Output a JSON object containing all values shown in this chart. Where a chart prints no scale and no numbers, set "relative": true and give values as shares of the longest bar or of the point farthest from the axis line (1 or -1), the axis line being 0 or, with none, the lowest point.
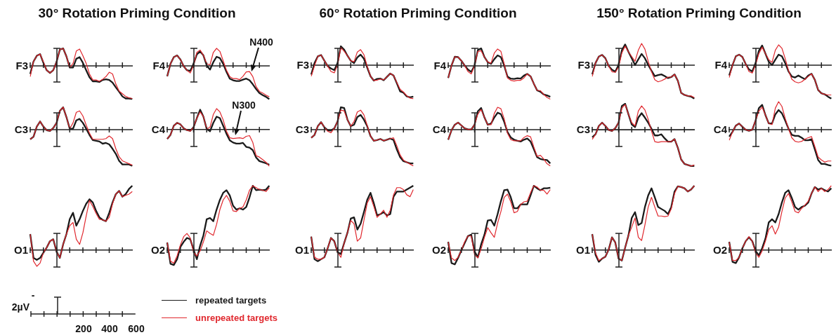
{
  "chart_data": [
    {
      "type": "other",
      "title": "30° Rotation Priming Condition"
    },
    {
      "type": "other",
      "title": "60° Rotation Priming Condition"
    },
    {
      "type": "other",
      "title": "150° Rotation Priming Condition"
    },
    {
      "type": "line",
      "relative": true,
      "ylabel": "F3",
      "legend": "bottom",
      "categories": [
        null,
        null,
        null,
        null,
        null,
        null,
        null,
        null,
        null,
        null,
        null,
        null,
        null,
        null,
        null,
        null,
        null,
        null,
        null,
        null,
        null,
        null,
        null,
        null,
        null,
        null,
        null,
        null,
        null,
        null,
        null,
        null
      ],
      "series": [
        {
          "name": "repeated targets",
          "color": "#1a1a1a",
          "values": [
            -0.25,
            0.12,
            0.29,
            0.34,
            0.08,
            -0.14,
            -0.22,
            -0.14,
            0.11,
            0.47,
            0.51,
            0.27,
            -0.06,
            -0.06,
            0.2,
            0.25,
            0.08,
            -0.14,
            -0.35,
            -0.47,
            -0.47,
            -0.49,
            -0.43,
            -0.41,
            -0.43,
            -0.51,
            -0.65,
            -0.78,
            -0.92,
            -0.98,
            -0.98,
            -1
          ]
        },
        {
          "name": "unrepeated targets",
          "color": "#e0282e",
          "values": [
            -0.33,
            0.12,
            0.29,
            0.34,
            0.11,
            -0.14,
            -0.22,
            -0.14,
            0.11,
            0.47,
            0.51,
            0.27,
            -0.06,
            0.06,
            0.43,
            0.49,
            0.29,
            0.06,
            -0.25,
            -0.43,
            -0.43,
            -0.47,
            -0.41,
            -0.33,
            -0.2,
            -0.25,
            -0.55,
            -0.76,
            -0.84,
            -0.92,
            -0.96,
            -0.98
          ]
        }
      ]
    },
    {
      "type": "line",
      "relative": true,
      "ylabel": "F4",
      "annotations": [
        "N400"
      ],
      "categories": [
        null,
        null,
        null,
        null,
        null,
        null,
        null,
        null,
        null,
        null,
        null,
        null,
        null,
        null,
        null,
        null,
        null,
        null,
        null,
        null,
        null,
        null,
        null,
        null,
        null,
        null,
        null,
        null,
        null,
        null,
        null,
        null
      ],
      "series": [
        {
          "color": "#1a1a1a",
          "values": [
            -0.32,
            0.05,
            0.25,
            0.3,
            0.18,
            -0.02,
            -0.14,
            -0.16,
            0.05,
            0.33,
            0.42,
            0.3,
            0,
            -0.12,
            0.1,
            0.26,
            0.22,
            0.05,
            -0.19,
            -0.39,
            -0.44,
            -0.46,
            -0.46,
            -0.42,
            -0.39,
            -0.44,
            -0.56,
            -0.7,
            -0.82,
            -0.88,
            -0.93,
            -1
          ]
        },
        {
          "color": "#e0282e",
          "values": [
            -0.32,
            0.05,
            0.25,
            0.3,
            0.18,
            -0.02,
            -0.14,
            -0.22,
            0,
            0.39,
            0.46,
            0.3,
            0.05,
            0.02,
            0.39,
            0.51,
            0.42,
            0.14,
            -0.14,
            -0.33,
            -0.39,
            -0.39,
            -0.42,
            -0.32,
            -0.19,
            -0.18,
            -0.33,
            -0.63,
            -0.77,
            -0.82,
            -0.88,
            -0.93
          ]
        }
      ]
    },
    {
      "type": "line",
      "relative": true,
      "ylabel": "F3",
      "categories": [
        null,
        null,
        null,
        null,
        null,
        null,
        null,
        null,
        null,
        null,
        null,
        null,
        null,
        null,
        null,
        null,
        null,
        null,
        null,
        null,
        null,
        null,
        null,
        null,
        null,
        null,
        null,
        null,
        null,
        null,
        null,
        null
      ],
      "series": [
        {
          "color": "#1a1a1a",
          "values": [
            -0.28,
            0.06,
            0.26,
            0.3,
            0.13,
            -0.03,
            -0.1,
            -0.15,
            0.06,
            0.56,
            0.46,
            0.28,
            0.13,
            0.06,
            0.23,
            0.31,
            0.19,
            -0.07,
            -0.33,
            -0.46,
            -0.41,
            -0.4,
            -0.45,
            -0.35,
            -0.25,
            -0.31,
            -0.54,
            -0.78,
            -0.82,
            -0.93,
            -0.96,
            -0.94
          ]
        },
        {
          "color": "#e0282e",
          "values": [
            -0.33,
            -0.02,
            0.26,
            0.3,
            0.13,
            -0.03,
            -0.19,
            -0.23,
            0,
            0.52,
            0.41,
            0.28,
            0.13,
            0.1,
            0.39,
            0.46,
            0.31,
            -0.03,
            -0.33,
            -0.46,
            -0.45,
            -0.41,
            -0.44,
            -0.35,
            -0.25,
            -0.31,
            -0.52,
            -0.72,
            -0.8,
            -0.91,
            -0.98,
            -1
          ]
        }
      ]
    },
    {
      "type": "line",
      "relative": true,
      "ylabel": "F4",
      "categories": [
        null,
        null,
        null,
        null,
        null,
        null,
        null,
        null,
        null,
        null,
        null,
        null,
        null,
        null,
        null,
        null,
        null,
        null,
        null,
        null,
        null,
        null,
        null,
        null,
        null,
        null,
        null,
        null,
        null,
        null,
        null,
        null
      ],
      "series": [
        {
          "color": "#1a1a1a",
          "values": [
            -0.37,
            0,
            0.26,
            0.25,
            0.14,
            0,
            -0.12,
            -0.19,
            0,
            0.46,
            0.51,
            0.25,
            0.1,
            0.05,
            0.19,
            0.3,
            0.25,
            0,
            -0.33,
            -0.39,
            -0.4,
            -0.38,
            -0.39,
            -0.3,
            -0.25,
            -0.32,
            -0.54,
            -0.74,
            -0.78,
            -0.86,
            -0.89,
            -0.93
          ]
        },
        {
          "color": "#e0282e",
          "values": [
            -0.37,
            0,
            0.26,
            0.25,
            0.14,
            0,
            -0.18,
            -0.25,
            0,
            0.42,
            0.44,
            0.25,
            0.1,
            0.07,
            0.37,
            0.49,
            0.42,
            0.05,
            -0.37,
            -0.44,
            -0.46,
            -0.44,
            -0.44,
            -0.37,
            -0.25,
            -0.32,
            -0.54,
            -0.74,
            -0.75,
            -0.86,
            -0.95,
            -1
          ]
        }
      ]
    },
    {
      "type": "line",
      "relative": true,
      "ylabel": "F3",
      "categories": [
        null,
        null,
        null,
        null,
        null,
        null,
        null,
        null,
        null,
        null,
        null,
        null,
        null,
        null,
        null,
        null,
        null,
        null,
        null,
        null,
        null,
        null,
        null,
        null,
        null,
        null,
        null,
        null,
        null,
        null,
        null,
        null
      ],
      "series": [
        {
          "color": "#1a1a1a",
          "values": [
            -0.28,
            0.06,
            0.25,
            0.3,
            0.2,
            -0.03,
            -0.14,
            -0.2,
            0,
            0.44,
            0.61,
            0.39,
            0.2,
            0,
            0.17,
            0.33,
            0.2,
            0,
            -0.17,
            -0.33,
            -0.3,
            -0.28,
            -0.33,
            -0.39,
            -0.36,
            -0.28,
            -0.47,
            -0.83,
            -0.89,
            -0.92,
            -0.94,
            -1
          ]
        },
        {
          "color": "#e0282e",
          "values": [
            -0.34,
            0.06,
            0.25,
            0.3,
            0.2,
            -0.03,
            -0.2,
            -0.22,
            -0.06,
            0.36,
            0.56,
            0.39,
            0.25,
            0.11,
            0.44,
            0.64,
            0.47,
            0.11,
            -0.2,
            -0.44,
            -0.5,
            -0.47,
            -0.42,
            -0.36,
            -0.36,
            -0.28,
            -0.47,
            -0.83,
            -0.89,
            -0.92,
            -0.92,
            -0.97
          ]
        }
      ]
    },
    {
      "type": "line",
      "relative": true,
      "ylabel": "F4",
      "categories": [
        null,
        null,
        null,
        null,
        null,
        null,
        null,
        null,
        null,
        null,
        null,
        null,
        null,
        null,
        null,
        null,
        null,
        null,
        null,
        null,
        null,
        null,
        null,
        null,
        null,
        null,
        null,
        null,
        null,
        null,
        null,
        null
      ],
      "series": [
        {
          "color": "#1a1a1a",
          "values": [
            -0.31,
            0,
            0.26,
            0.31,
            0.24,
            0.03,
            -0.13,
            -0.19,
            0.06,
            0.42,
            0.58,
            0.34,
            0.1,
            0,
            0.16,
            0.31,
            0.26,
            0.06,
            -0.19,
            -0.34,
            -0.37,
            -0.31,
            -0.37,
            -0.42,
            -0.31,
            -0.26,
            -0.44,
            -0.74,
            -0.84,
            -0.87,
            -0.94,
            -1
          ]
        },
        {
          "color": "#e0282e",
          "values": [
            -0.37,
            0,
            0.26,
            0.31,
            0.24,
            0.03,
            -0.19,
            -0.24,
            0,
            0.34,
            0.53,
            0.34,
            0.16,
            0.08,
            0.44,
            0.6,
            0.5,
            0.19,
            -0.16,
            -0.42,
            -0.5,
            -0.53,
            -0.5,
            -0.42,
            -0.34,
            -0.26,
            -0.44,
            -0.74,
            -0.84,
            -0.87,
            -0.89,
            -0.89
          ]
        }
      ]
    },
    {
      "type": "line",
      "relative": true,
      "ylabel": "C3",
      "categories": [
        null,
        null,
        null,
        null,
        null,
        null,
        null,
        null,
        null,
        null,
        null,
        null,
        null,
        null,
        null,
        null,
        null,
        null,
        null,
        null,
        null,
        null,
        null,
        null,
        null,
        null,
        null,
        null,
        null,
        null,
        null,
        null
      ],
      "series": [
        {
          "color": "#1a1a1a",
          "values": [
            -0.27,
            -0.2,
            0.08,
            0.22,
            0.08,
            -0.02,
            -0.04,
            0.04,
            0.18,
            0.51,
            0.61,
            0.34,
            0.02,
            0.02,
            0.25,
            0.29,
            0.18,
            0.02,
            -0.15,
            -0.29,
            -0.31,
            -0.33,
            -0.39,
            -0.37,
            -0.41,
            -0.53,
            -0.67,
            -0.86,
            -0.96,
            -0.96,
            -0.96,
            -1
          ]
        },
        {
          "color": "#e0282e",
          "values": [
            -0.27,
            -0.2,
            0.08,
            0.22,
            0.08,
            -0.02,
            -0.04,
            0.04,
            0.18,
            0.51,
            0.61,
            0.34,
            0.02,
            0.18,
            0.47,
            0.51,
            0.37,
            0.12,
            -0.1,
            -0.27,
            -0.27,
            -0.27,
            -0.27,
            -0.25,
            -0.18,
            -0.25,
            -0.53,
            -0.75,
            -0.86,
            -0.9,
            -0.94,
            -0.98
          ]
        }
      ]
    },
    {
      "type": "line",
      "relative": true,
      "ylabel": "C4",
      "annotations": [
        "N300"
      ],
      "categories": [
        null,
        null,
        null,
        null,
        null,
        null,
        null,
        null,
        null,
        null,
        null,
        null,
        null,
        null,
        null,
        null,
        null,
        null,
        null,
        null,
        null,
        null,
        null,
        null,
        null,
        null,
        null,
        null,
        null,
        null,
        null,
        null
      ],
      "series": [
        {
          "color": "#1a1a1a",
          "values": [
            -0.25,
            -0.14,
            0.11,
            0.19,
            0.15,
            0.04,
            -0.01,
            -0.03,
            0.07,
            0.32,
            0.55,
            0.36,
            0.02,
            -0.04,
            0.19,
            0.36,
            0.32,
            0.11,
            -0.11,
            -0.29,
            -0.35,
            -0.38,
            -0.38,
            -0.36,
            -0.47,
            -0.49,
            -0.56,
            -0.76,
            -0.86,
            -0.89,
            -0.92,
            -0.96
          ]
        },
        {
          "color": "#e0282e",
          "values": [
            -0.25,
            -0.14,
            0.11,
            0.19,
            0.15,
            0.04,
            -0.01,
            -0.04,
            0.07,
            0.32,
            0.49,
            0.36,
            0.02,
            0.07,
            0.42,
            0.58,
            0.49,
            0.27,
            -0.04,
            -0.22,
            -0.24,
            -0.23,
            -0.22,
            -0.24,
            -0.18,
            -0.16,
            -0.35,
            -0.71,
            -0.75,
            -0.82,
            -0.89,
            -1
          ]
        }
      ]
    },
    {
      "type": "line",
      "relative": true,
      "ylabel": "C3",
      "categories": [
        null,
        null,
        null,
        null,
        null,
        null,
        null,
        null,
        null,
        null,
        null,
        null,
        null,
        null,
        null,
        null,
        null,
        null,
        null,
        null,
        null,
        null,
        null,
        null,
        null,
        null,
        null,
        null,
        null,
        null,
        null,
        null
      ],
      "series": [
        {
          "color": "#1a1a1a",
          "values": [
            -0.23,
            -0.15,
            0.09,
            0.2,
            0.06,
            -0.02,
            -0.03,
            0.03,
            0.22,
            0.61,
            0.59,
            0.27,
            0.09,
            0.13,
            0.34,
            0.4,
            0.27,
            0.09,
            -0.18,
            -0.31,
            -0.29,
            -0.26,
            -0.31,
            -0.28,
            -0.25,
            -0.29,
            -0.55,
            -0.76,
            -0.87,
            -0.9,
            -0.93,
            -0.93
          ]
        },
        {
          "color": "#e0282e",
          "values": [
            -0.23,
            -0.15,
            0.09,
            0.2,
            0.06,
            -0.05,
            -0.09,
            0.03,
            0.22,
            0.53,
            0.51,
            0.27,
            0.09,
            0.22,
            0.48,
            0.53,
            0.4,
            0.11,
            -0.18,
            -0.31,
            -0.29,
            -0.26,
            -0.31,
            -0.28,
            -0.25,
            -0.23,
            -0.45,
            -0.7,
            -0.84,
            -0.9,
            -0.95,
            -1
          ]
        }
      ]
    },
    {
      "type": "line",
      "relative": true,
      "ylabel": "C4",
      "categories": [
        null,
        null,
        null,
        null,
        null,
        null,
        null,
        null,
        null,
        null,
        null,
        null,
        null,
        null,
        null,
        null,
        null,
        null,
        null,
        null,
        null,
        null,
        null,
        null,
        null,
        null,
        null,
        null,
        null,
        null,
        null,
        null
      ],
      "series": [
        {
          "color": "#1a1a1a",
          "values": [
            -0.28,
            -0.02,
            0.13,
            0.19,
            0.11,
            0.03,
            0,
            0,
            0.13,
            0.5,
            0.59,
            0.33,
            0.13,
            0.16,
            0.33,
            0.46,
            0.42,
            0.21,
            -0.07,
            -0.22,
            -0.28,
            -0.31,
            -0.33,
            -0.28,
            -0.25,
            -0.33,
            -0.54,
            -0.76,
            -0.81,
            -0.83,
            -0.84,
            -0.93
          ]
        },
        {
          "color": "#e0282e",
          "values": [
            -0.28,
            -0.02,
            0.13,
            0.19,
            0.11,
            0.03,
            0,
            0,
            0.13,
            0.42,
            0.55,
            0.33,
            0.13,
            0.13,
            0.44,
            0.61,
            0.57,
            0.29,
            -0.1,
            -0.28,
            -0.31,
            -0.31,
            -0.31,
            -0.22,
            -0.17,
            -0.2,
            -0.48,
            -0.74,
            -0.71,
            -0.81,
            -0.94,
            -1
          ]
        }
      ]
    },
    {
      "type": "line",
      "relative": true,
      "ylabel": "C3",
      "categories": [
        null,
        null,
        null,
        null,
        null,
        null,
        null,
        null,
        null,
        null,
        null,
        null,
        null,
        null,
        null,
        null,
        null,
        null,
        null,
        null,
        null,
        null,
        null,
        null,
        null,
        null,
        null,
        null,
        null,
        null,
        null,
        null
      ],
      "series": [
        {
          "color": "#1a1a1a",
          "values": [
            -0.21,
            -0.13,
            0.1,
            0.19,
            0.1,
            -0.01,
            -0.04,
            0.04,
            0.19,
            0.65,
            0.71,
            0.42,
            0.14,
            0.07,
            0.33,
            0.45,
            0.33,
            0.19,
            0.02,
            -0.16,
            -0.16,
            -0.13,
            -0.24,
            -0.33,
            -0.33,
            -0.26,
            -0.5,
            -0.82,
            -0.94,
            -0.97,
            -1,
            -1
          ]
        },
        {
          "color": "#e0282e",
          "values": [
            -0.27,
            -0.13,
            0.1,
            0.19,
            0.1,
            -0.01,
            -0.04,
            0.04,
            0.19,
            0.59,
            0.69,
            0.42,
            0.19,
            0.1,
            0.51,
            0.65,
            0.54,
            0.28,
            -0.04,
            -0.33,
            -0.35,
            -0.33,
            -0.33,
            -0.33,
            -0.33,
            -0.26,
            -0.5,
            -0.82,
            -0.94,
            -0.97,
            -1,
            -0.97
          ]
        }
      ]
    },
    {
      "type": "line",
      "relative": true,
      "ylabel": "C4",
      "categories": [
        null,
        null,
        null,
        null,
        null,
        null,
        null,
        null,
        null,
        null,
        null,
        null,
        null,
        null,
        null,
        null,
        null,
        null,
        null,
        null,
        null,
        null,
        null,
        null,
        null,
        null,
        null,
        null,
        null,
        null,
        null,
        null
      ],
      "series": [
        {
          "color": "#1a1a1a",
          "values": [
            -0.2,
            -0.07,
            0.1,
            0.16,
            0.07,
            -0.01,
            -0.04,
            -0.01,
            0.24,
            0.58,
            0.67,
            0.39,
            0.16,
            0.16,
            0.41,
            0.53,
            0.44,
            0.24,
            0.02,
            -0.15,
            -0.18,
            -0.18,
            -0.23,
            -0.3,
            -0.3,
            -0.27,
            -0.55,
            -0.84,
            -0.95,
            -0.95,
            -0.98,
            -1
          ]
        },
        {
          "color": "#e0282e",
          "values": [
            -0.3,
            -0.07,
            0.1,
            0.16,
            0.07,
            -0.01,
            -0.04,
            -0.01,
            0.24,
            0.5,
            0.61,
            0.39,
            0.16,
            0.13,
            0.58,
            0.76,
            0.63,
            0.3,
            0.02,
            -0.23,
            -0.33,
            -0.35,
            -0.33,
            -0.27,
            -0.23,
            -0.2,
            -0.47,
            -0.76,
            -0.84,
            -0.9,
            -0.87,
            -0.87
          ]
        }
      ]
    },
    {
      "type": "line",
      "relative": true,
      "ylabel": "O1",
      "categories": [
        null,
        null,
        null,
        null,
        null,
        null,
        null,
        null,
        null,
        null,
        null,
        null,
        null,
        null,
        null,
        null,
        null,
        null,
        null,
        null,
        null,
        null,
        null,
        null,
        null,
        null,
        null,
        null,
        null,
        null,
        null,
        null
      ],
      "series": [
        {
          "color": "#1a1a1a",
          "values": [
            0.25,
            -0.12,
            -0.15,
            -0.12,
            -0.04,
            0.04,
            0.14,
            0.17,
            -0.02,
            -0.12,
            0.09,
            0.25,
            0.48,
            0.58,
            0.38,
            0.48,
            0.61,
            0.72,
            0.79,
            0.74,
            0.61,
            0.51,
            0.47,
            0.45,
            0.58,
            0.74,
            0.87,
            0.92,
            0.83,
            0.87,
            0.95,
            1
          ]
        },
        {
          "color": "#e0282e",
          "values": [
            0.25,
            -0.17,
            -0.25,
            -0.2,
            -0.04,
            0.04,
            0.14,
            0.17,
            -0.02,
            -0.12,
            0.09,
            0.25,
            0.38,
            0.43,
            0.17,
            0.09,
            0.27,
            0.53,
            0.77,
            0.68,
            0.57,
            0.48,
            0.47,
            0.45,
            0.51,
            0.72,
            0.87,
            0.92,
            0.83,
            0.85,
            0.87,
            0.91
          ]
        }
      ]
    },
    {
      "type": "line",
      "relative": true,
      "ylabel": "O2",
      "categories": [
        null,
        null,
        null,
        null,
        null,
        null,
        null,
        null,
        null,
        null,
        null,
        null,
        null,
        null,
        null,
        null,
        null,
        null,
        null,
        null,
        null,
        null,
        null,
        null,
        null,
        null,
        null,
        null,
        null,
        null,
        null,
        null
      ],
      "series": [
        {
          "color": "#1a1a1a",
          "values": [
            0.12,
            -0.21,
            -0.23,
            -0.14,
            0.05,
            0.13,
            0.19,
            0.17,
            0.01,
            -0.14,
            0.07,
            0.23,
            0.48,
            0.5,
            0.45,
            0.63,
            0.78,
            0.89,
            0.93,
            0.85,
            0.69,
            0.63,
            0.65,
            0.63,
            0.67,
            0.82,
            1,
            0.93,
            0.94,
            0.93,
            0.94,
            1
          ]
        },
        {
          "color": "#e0282e",
          "values": [
            0.12,
            -0.17,
            -0.2,
            -0.09,
            0.08,
            0.21,
            0.26,
            0.19,
            -0.03,
            -0.09,
            -0.01,
            0.13,
            0.3,
            0.26,
            0.23,
            0.4,
            0.63,
            0.78,
            0.85,
            0.76,
            0.61,
            0.6,
            0.65,
            0.67,
            0.78,
            0.93,
            1,
            0.97,
            0.94,
            0.93,
            0.91,
            0.97
          ]
        }
      ]
    },
    {
      "type": "line",
      "relative": true,
      "ylabel": "O1",
      "categories": [
        null,
        null,
        null,
        null,
        null,
        null,
        null,
        null,
        null,
        null,
        null,
        null,
        null,
        null,
        null,
        null,
        null,
        null,
        null,
        null,
        null,
        null,
        null,
        null,
        null,
        null,
        null,
        null,
        null,
        null,
        null,
        null
      ],
      "series": [
        {
          "color": "#1a1a1a",
          "values": [
            0.21,
            -0.14,
            -0.17,
            -0.14,
            -0.11,
            0.03,
            0.19,
            0.14,
            -0.03,
            -0.06,
            0.11,
            0.27,
            0.49,
            0.51,
            0.32,
            0.41,
            0.59,
            0.78,
            0.89,
            0.73,
            0.54,
            0.56,
            0.59,
            0.54,
            0.56,
            0.83,
            0.91,
            0.91,
            0.91,
            0.94,
            0.97,
            1
          ]
        },
        {
          "color": "#e0282e",
          "values": [
            0.21,
            -0.11,
            -0.14,
            -0.14,
            -0.11,
            0.03,
            0.19,
            0.14,
            -0.03,
            -0.11,
            0.11,
            0.27,
            0.46,
            0.41,
            0.14,
            0.19,
            0.46,
            0.73,
            0.83,
            0.68,
            0.51,
            0.56,
            0.62,
            0.51,
            0.62,
            0.86,
            0.97,
            0.97,
            0.94,
            0.86,
            0.83,
            0.94
          ]
        }
      ]
    },
    {
      "type": "line",
      "relative": true,
      "ylabel": "O2",
      "categories": [
        null,
        null,
        null,
        null,
        null,
        null,
        null,
        null,
        null,
        null,
        null,
        null,
        null,
        null,
        null,
        null,
        null,
        null,
        null,
        null,
        null,
        null,
        null,
        null,
        null,
        null,
        null,
        null,
        null,
        null,
        null,
        null
      ],
      "series": [
        {
          "color": "#1a1a1a",
          "values": [
            0.13,
            -0.2,
            -0.22,
            -0.12,
            0,
            0.11,
            0.22,
            0.24,
            -0.02,
            -0.11,
            0.09,
            0.24,
            0.46,
            0.47,
            0.38,
            0.56,
            0.76,
            0.93,
            0.94,
            0.82,
            0.65,
            0.65,
            0.71,
            0.71,
            0.71,
            0.85,
            1,
            0.96,
            0.93,
            0.96,
            0.96,
            0.97
          ]
        },
        {
          "color": "#e0282e",
          "values": [
            0.13,
            -0.12,
            -0.16,
            -0.11,
            0,
            0.13,
            0.22,
            0.22,
            -0.07,
            -0.12,
            0.02,
            0.2,
            0.35,
            0.27,
            0.2,
            0.42,
            0.6,
            0.82,
            0.87,
            0.75,
            0.58,
            0.6,
            0.71,
            0.75,
            0.76,
            0.89,
            1,
            0.98,
            0.93,
            0.93,
            0.87,
            0.94
          ]
        }
      ]
    },
    {
      "type": "line",
      "relative": true,
      "ylabel": "O1",
      "categories": [
        null,
        null,
        null,
        null,
        null,
        null,
        null,
        null,
        null,
        null,
        null,
        null,
        null,
        null,
        null,
        null,
        null,
        null,
        null,
        null,
        null,
        null,
        null,
        null,
        null,
        null,
        null,
        null,
        null,
        null,
        null,
        null
      ],
      "series": [
        {
          "color": "#1a1a1a",
          "values": [
            0.25,
            -0.07,
            -0.18,
            -0.13,
            -0.1,
            0.01,
            0.2,
            0.12,
            -0.13,
            -0.16,
            0.04,
            0.23,
            0.5,
            0.59,
            0.39,
            0.42,
            0.67,
            0.85,
            0.96,
            0.82,
            0.67,
            0.64,
            0.61,
            0.56,
            0.67,
            0.91,
            0.99,
            0.98,
            0.96,
            0.91,
            0.94,
            1
          ]
        },
        {
          "color": "#e0282e",
          "values": [
            0.25,
            -0.04,
            -0.16,
            -0.13,
            -0.1,
            0.01,
            0.2,
            0.12,
            -0.13,
            -0.16,
            0.04,
            0.23,
            0.36,
            0.5,
            0.2,
            0.15,
            0.39,
            0.67,
            0.82,
            0.67,
            0.53,
            0.53,
            0.52,
            0.53,
            0.64,
            0.88,
            0.99,
            0.98,
            0.96,
            0.91,
            0.94,
            1
          ]
        }
      ]
    },
    {
      "type": "line",
      "relative": true,
      "ylabel": "O2",
      "categories": [
        null,
        null,
        null,
        null,
        null,
        null,
        null,
        null,
        null,
        null,
        null,
        null,
        null,
        null,
        null,
        null,
        null,
        null,
        null,
        null,
        null,
        null,
        null,
        null,
        null,
        null,
        null,
        null,
        null,
        null,
        null,
        null
      ],
      "series": [
        {
          "color": "#1a1a1a",
          "values": [
            0.13,
            -0.18,
            -0.2,
            -0.11,
            0.03,
            0.14,
            0.2,
            0.14,
            -0.01,
            -0.08,
            0.03,
            0.18,
            0.43,
            0.48,
            0.43,
            0.56,
            0.74,
            0.89,
            0.93,
            0.81,
            0.67,
            0.63,
            0.67,
            0.69,
            0.74,
            0.88,
            0.98,
            0.94,
            0.96,
            0.93,
            0.91,
            0.96
          ]
        },
        {
          "color": "#e0282e",
          "values": [
            0.13,
            -0.16,
            -0.16,
            -0.11,
            0.03,
            0.14,
            0.21,
            0.14,
            -0.04,
            -0.11,
            -0.01,
            0.14,
            0.32,
            0.38,
            0.25,
            0.36,
            0.6,
            0.81,
            0.88,
            0.75,
            0.6,
            0.58,
            0.65,
            0.7,
            0.76,
            0.88,
            0.98,
            0.91,
            0.96,
            0.91,
            0.94,
            1
          ]
        }
      ]
    },
    {
      "type": "other",
      "annotations": [
        "-",
        "2µV",
        "200",
        "400",
        "600"
      ]
    }
  ]
}
